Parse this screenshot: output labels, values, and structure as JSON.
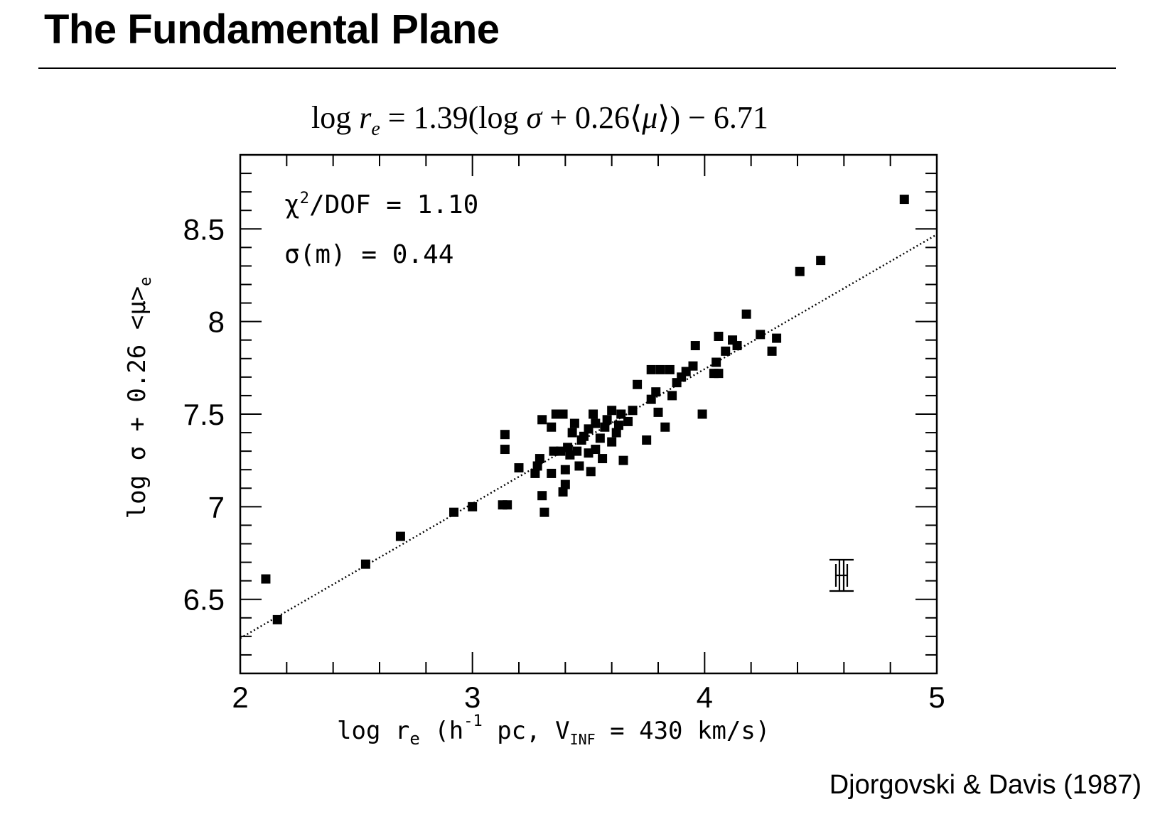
{
  "slide": {
    "title": "The Fundamental Plane",
    "credit": "Djorgovski & Davis (1987)"
  },
  "chart_data": {
    "type": "scatter",
    "title": "log r_e = 1.39(log σ + 0.26⟨μ⟩) − 6.71",
    "xlabel": "log r_e (h^-1 pc, V_INF = 430 km/s)",
    "ylabel": "log σ + 0.26 <μ>_e",
    "xlim": [
      2,
      5
    ],
    "ylim": [
      6.1,
      8.9
    ],
    "xticks": [
      "2",
      "3",
      "4",
      "5"
    ],
    "yticks": [
      "6.5",
      "7",
      "7.5",
      "8",
      "8.5"
    ],
    "grid": false,
    "marker": "filled-square",
    "annotations": {
      "chi2_symbol": "χ",
      "chi2_label": "/DOF  =  1.10",
      "sigma_label": "σ(m)  =  0.44"
    },
    "fit_line": {
      "style": "dotted",
      "x": [
        2,
        5
      ],
      "y": [
        6.29,
        8.47
      ]
    },
    "series": [
      {
        "points": [
          [
            2.11,
            6.61
          ],
          [
            2.16,
            6.39
          ],
          [
            2.54,
            6.69
          ],
          [
            2.69,
            6.84
          ],
          [
            2.92,
            6.97
          ],
          [
            3.0,
            7.0
          ],
          [
            3.13,
            7.01
          ],
          [
            3.15,
            7.01
          ],
          [
            3.14,
            7.31
          ],
          [
            3.14,
            7.39
          ],
          [
            3.2,
            7.21
          ],
          [
            3.27,
            7.18
          ],
          [
            3.28,
            7.22
          ],
          [
            3.29,
            7.26
          ],
          [
            3.3,
            7.47
          ],
          [
            3.3,
            7.06
          ],
          [
            3.31,
            6.97
          ],
          [
            3.34,
            7.18
          ],
          [
            3.35,
            7.3
          ],
          [
            3.34,
            7.43
          ],
          [
            3.36,
            7.5
          ],
          [
            3.38,
            7.3
          ],
          [
            3.39,
            7.5
          ],
          [
            3.39,
            7.08
          ],
          [
            3.4,
            7.12
          ],
          [
            3.4,
            7.2
          ],
          [
            3.41,
            7.32
          ],
          [
            3.42,
            7.28
          ],
          [
            3.43,
            7.4
          ],
          [
            3.44,
            7.45
          ],
          [
            3.45,
            7.3
          ],
          [
            3.46,
            7.22
          ],
          [
            3.47,
            7.36
          ],
          [
            3.48,
            7.38
          ],
          [
            3.5,
            7.29
          ],
          [
            3.5,
            7.42
          ],
          [
            3.51,
            7.19
          ],
          [
            3.52,
            7.5
          ],
          [
            3.53,
            7.31
          ],
          [
            3.53,
            7.45
          ],
          [
            3.55,
            7.37
          ],
          [
            3.56,
            7.26
          ],
          [
            3.57,
            7.43
          ],
          [
            3.58,
            7.47
          ],
          [
            3.6,
            7.35
          ],
          [
            3.6,
            7.52
          ],
          [
            3.62,
            7.4
          ],
          [
            3.63,
            7.44
          ],
          [
            3.64,
            7.5
          ],
          [
            3.65,
            7.25
          ],
          [
            3.67,
            7.46
          ],
          [
            3.69,
            7.52
          ],
          [
            3.71,
            7.66
          ],
          [
            3.75,
            7.36
          ],
          [
            3.77,
            7.74
          ],
          [
            3.77,
            7.58
          ],
          [
            3.79,
            7.62
          ],
          [
            3.8,
            7.51
          ],
          [
            3.81,
            7.74
          ],
          [
            3.83,
            7.43
          ],
          [
            3.85,
            7.74
          ],
          [
            3.86,
            7.6
          ],
          [
            3.88,
            7.67
          ],
          [
            3.9,
            7.7
          ],
          [
            3.92,
            7.73
          ],
          [
            3.95,
            7.76
          ],
          [
            3.96,
            7.87
          ],
          [
            3.99,
            7.5
          ],
          [
            4.04,
            7.72
          ],
          [
            4.05,
            7.78
          ],
          [
            4.06,
            7.72
          ],
          [
            4.06,
            7.92
          ],
          [
            4.09,
            7.84
          ],
          [
            4.12,
            7.9
          ],
          [
            4.14,
            7.87
          ],
          [
            4.18,
            8.04
          ],
          [
            4.24,
            7.93
          ],
          [
            4.29,
            7.84
          ],
          [
            4.31,
            7.91
          ],
          [
            4.41,
            8.27
          ],
          [
            4.5,
            8.33
          ],
          [
            4.86,
            8.66
          ]
        ]
      }
    ]
  }
}
